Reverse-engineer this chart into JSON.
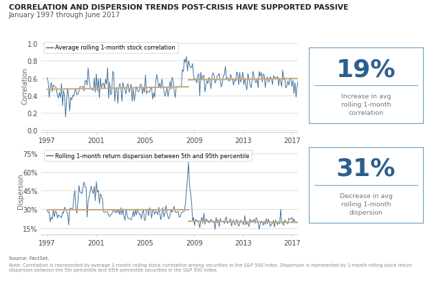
{
  "title": "CORRELATION AND DISPERSION TRENDS POST-CRISIS HAVE SUPPORTED PASSIVE",
  "subtitle": "January 1997 through June 2017",
  "source_text": "Source: FactSet.",
  "note_text": "Note: Correlation is represented by average 1-month rolling stock correlation among securities in the S&P 500 Index. Dispersion is represented by 1-month rolling stock return\ndispersion between the 5th percentile and 95th percentile securities in the S&P 500 Index.",
  "corr_legend": "Average rolling 1-month stock correlation",
  "disp_legend": "Rolling 1-month return dispersion between 5th and 95th percentile",
  "corr_ylabel": "Correlation",
  "disp_ylabel": "Dispersion",
  "corr_yticks": [
    0.0,
    0.2,
    0.4,
    0.6,
    0.8,
    1.0
  ],
  "corr_ylim": [
    -0.02,
    1.05
  ],
  "disp_yticks": [
    0.15,
    0.3,
    0.45,
    0.6,
    0.75
  ],
  "disp_ylim": [
    0.1,
    0.8
  ],
  "xticks": [
    1997,
    2001,
    2005,
    2009,
    2013,
    2017
  ],
  "xlim": [
    1996.5,
    2017.5
  ],
  "line_color": "#2b5f8e",
  "trend_color": "#c8a97a",
  "box_edge_color": "#6b9dc2",
  "box_text_color": "#2b5f8e",
  "bg_color": "#ffffff",
  "grid_color": "#d0d0d0",
  "title_color": "#222222",
  "subtitle_color": "#555555",
  "corr_box_pct": "19%",
  "corr_box_label": "Increase in avg\nrolling 1-month\ncorrelation",
  "disp_box_pct": "31%",
  "disp_box_label": "Decrease in avg\nrolling 1-month\ndispersion"
}
